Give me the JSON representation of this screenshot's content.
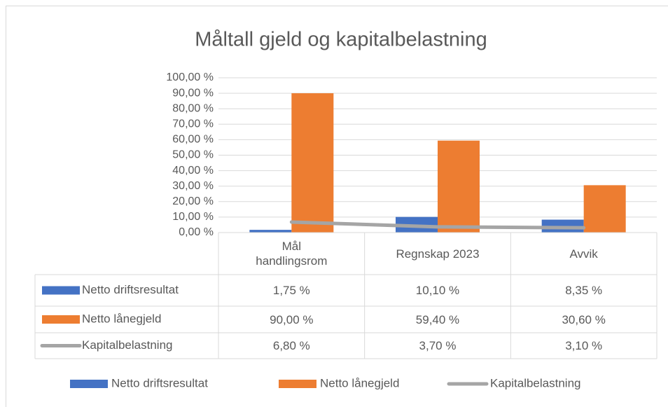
{
  "chart_data": {
    "type": "bar",
    "title": "Måltall gjeld og kapitalbelastning",
    "categories": [
      "Mål handlingsrom",
      "Regnskap 2023",
      "Avvik"
    ],
    "series": [
      {
        "name": "Netto driftsresultat",
        "type": "bar",
        "color": "#4472c4",
        "values": [
          1.75,
          10.1,
          8.35
        ],
        "value_labels": [
          "1,75 %",
          "10,10 %",
          "8,35 %"
        ]
      },
      {
        "name": "Netto lånegjeld",
        "type": "bar",
        "color": "#ed7d31",
        "values": [
          90,
          59.4,
          30.6
        ],
        "value_labels": [
          "90,00 %",
          "59,40 %",
          "30,60 %"
        ]
      },
      {
        "name": "Kapitalbelastning",
        "type": "line",
        "color": "#a5a5a5",
        "values": [
          6.8,
          3.7,
          3.1
        ],
        "value_labels": [
          "6,80 %",
          "3,70 %",
          "3,10 %"
        ]
      }
    ],
    "ylim": [
      0,
      100
    ],
    "yticks": [
      {
        "value": 0,
        "label": "0,00 %"
      },
      {
        "value": 10,
        "label": "10,00 %"
      },
      {
        "value": 20,
        "label": "20,00 %"
      },
      {
        "value": 30,
        "label": "30,00 %"
      },
      {
        "value": 40,
        "label": "40,00 %"
      },
      {
        "value": 50,
        "label": "50,00 %"
      },
      {
        "value": 60,
        "label": "60,00 %"
      },
      {
        "value": 70,
        "label": "70,00 %"
      },
      {
        "value": 80,
        "label": "80,00 %"
      },
      {
        "value": 90,
        "label": "90,00 %"
      },
      {
        "value": 100,
        "label": "100,00 %"
      }
    ],
    "grid": true,
    "data_table": true,
    "legend": "bottom"
  }
}
